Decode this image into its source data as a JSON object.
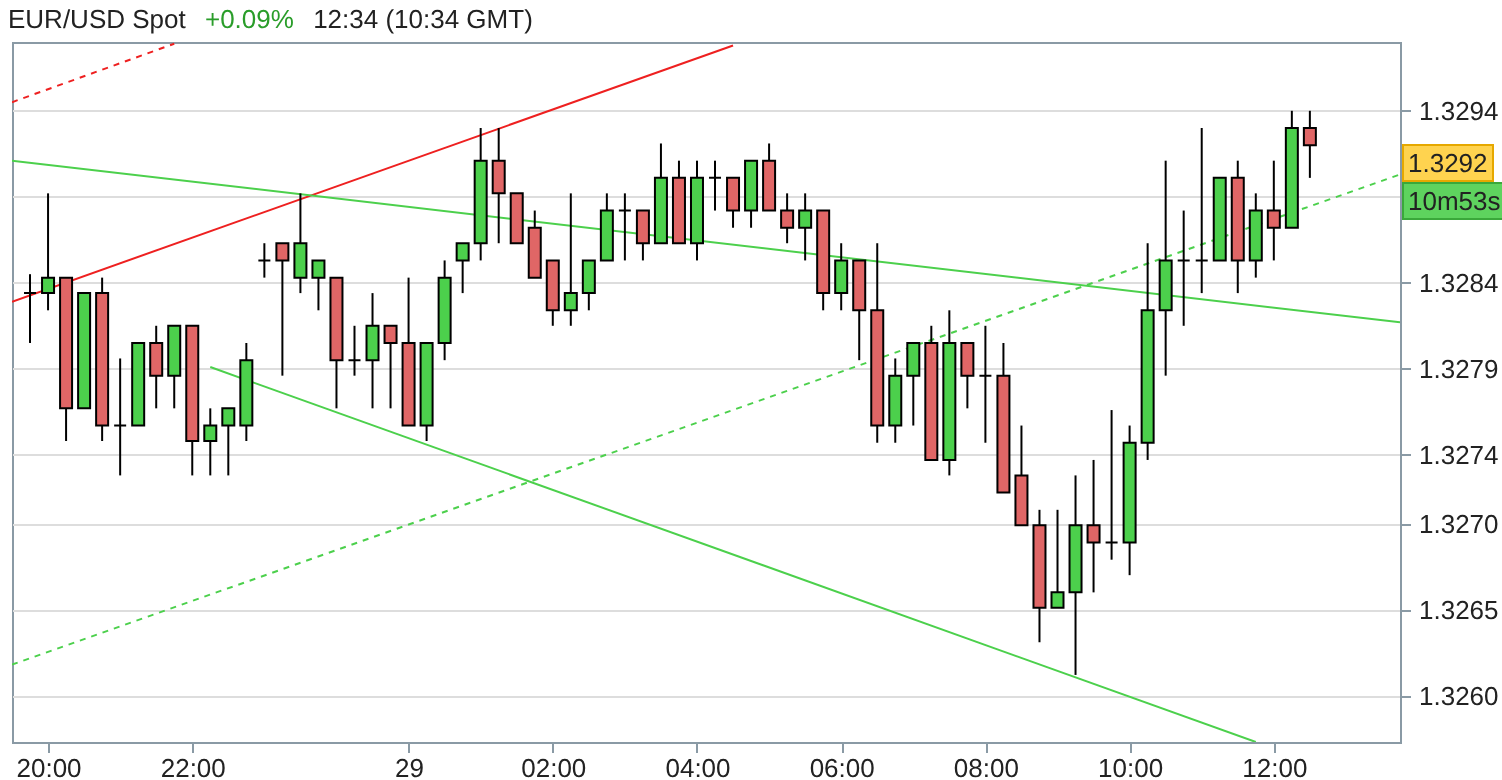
{
  "chart_data": {
    "type": "candlestick",
    "title": "EUR/USD Spot",
    "subtitle": "+0.09% 12:34 (10:34 GMT)",
    "categories": [
      null,
      null,
      "20:00",
      null,
      null,
      null,
      null,
      null,
      null,
      null,
      "22:00",
      null,
      null,
      null,
      null,
      null,
      null,
      null,
      null,
      null,
      null,
      null,
      "29",
      null,
      null,
      null,
      null,
      null,
      null,
      null,
      "02:00",
      null,
      null,
      null,
      null,
      null,
      null,
      null,
      "04:00",
      null,
      null,
      null,
      null,
      null,
      null,
      null,
      "06:00",
      null,
      null,
      null,
      null,
      null,
      null,
      null,
      "08:00",
      null,
      null,
      null,
      null,
      null,
      null,
      null,
      "10:00",
      null,
      null,
      null,
      null,
      null,
      null,
      null,
      "12:00",
      null,
      null,
      null,
      null,
      null,
      null,
      null
    ],
    "ohlc": [
      null,
      [
        1.32834,
        1.32845,
        1.32805,
        1.32834
      ],
      [
        1.32834,
        1.32892,
        1.32824,
        1.32843
      ],
      [
        1.32843,
        1.32843,
        1.32748,
        1.32767
      ],
      [
        1.32767,
        1.32834,
        1.32767,
        1.32834
      ],
      [
        1.32834,
        1.32843,
        1.32748,
        1.32757
      ],
      [
        1.32757,
        1.32796,
        1.32728,
        1.32757
      ],
      [
        1.32757,
        1.32805,
        1.32757,
        1.32805
      ],
      [
        1.32805,
        1.32815,
        1.32767,
        1.32786
      ],
      [
        1.32786,
        1.32815,
        1.32767,
        1.32815
      ],
      [
        1.32815,
        1.32815,
        1.32728,
        1.32748
      ],
      [
        1.32748,
        1.32767,
        1.32728,
        1.32757
      ],
      [
        1.32757,
        1.32767,
        1.32728,
        1.32767
      ],
      [
        1.32757,
        1.32805,
        1.32748,
        1.32795
      ],
      [
        1.32853,
        1.32863,
        1.32843,
        1.32853
      ],
      [
        1.32863,
        1.32863,
        1.32786,
        1.32853
      ],
      [
        1.32843,
        1.32892,
        1.32834,
        1.32863
      ],
      [
        1.32843,
        1.32853,
        1.32824,
        1.32853
      ],
      [
        1.32843,
        1.32843,
        1.32767,
        1.32795
      ],
      [
        1.32795,
        1.32815,
        1.32786,
        1.32795
      ],
      [
        1.32795,
        1.32834,
        1.32767,
        1.32815
      ],
      [
        1.32815,
        1.32815,
        1.32767,
        1.32805
      ],
      [
        1.32805,
        1.32843,
        1.32757,
        1.32757
      ],
      [
        1.32757,
        1.32805,
        1.32748,
        1.32805
      ],
      [
        1.32805,
        1.32853,
        1.32795,
        1.32843
      ],
      [
        1.32853,
        1.32863,
        1.32834,
        1.32863
      ],
      [
        1.32863,
        1.3293,
        1.32853,
        1.32911
      ],
      [
        1.32911,
        1.3293,
        1.32863,
        1.32892
      ],
      [
        1.32892,
        1.32892,
        1.32863,
        1.32863
      ],
      [
        1.32872,
        1.32882,
        1.32843,
        1.32843
      ],
      [
        1.32853,
        1.32853,
        1.32815,
        1.32824
      ],
      [
        1.32824,
        1.32892,
        1.32815,
        1.32834
      ],
      [
        1.32834,
        1.32853,
        1.32824,
        1.32853
      ],
      [
        1.32853,
        1.32892,
        1.32853,
        1.32882
      ],
      [
        1.32882,
        1.32892,
        1.32853,
        1.32882
      ],
      [
        1.32882,
        1.32882,
        1.32853,
        1.32863
      ],
      [
        1.32863,
        1.32921,
        1.32863,
        1.32901
      ],
      [
        1.32901,
        1.32911,
        1.32863,
        1.32863
      ],
      [
        1.32863,
        1.32911,
        1.32853,
        1.32901
      ],
      [
        1.32901,
        1.32911,
        1.32882,
        1.32901
      ],
      [
        1.32901,
        1.32901,
        1.32872,
        1.32882
      ],
      [
        1.32882,
        1.32911,
        1.32872,
        1.32911
      ],
      [
        1.32911,
        1.32921,
        1.32882,
        1.32882
      ],
      [
        1.32882,
        1.32892,
        1.32863,
        1.32872
      ],
      [
        1.32872,
        1.32892,
        1.32853,
        1.32882
      ],
      [
        1.32882,
        1.32882,
        1.32824,
        1.32834
      ],
      [
        1.32834,
        1.32863,
        1.32824,
        1.32853
      ],
      [
        1.32853,
        1.32853,
        1.32795,
        1.32824
      ],
      [
        1.32824,
        1.32863,
        1.32747,
        1.32757
      ],
      [
        1.32757,
        1.32796,
        1.32747,
        1.32786
      ],
      [
        1.32786,
        1.32805,
        1.32757,
        1.32805
      ],
      [
        1.32805,
        1.32815,
        1.32737,
        1.32737
      ],
      [
        1.32737,
        1.32824,
        1.32728,
        1.32805
      ],
      [
        1.32805,
        1.32805,
        1.32767,
        1.32786
      ],
      [
        1.32786,
        1.32815,
        1.32747,
        1.32786
      ],
      [
        1.32786,
        1.32805,
        1.32718,
        1.32718
      ],
      [
        1.32728,
        1.32757,
        1.32699,
        1.32699
      ],
      [
        1.32699,
        1.32708,
        1.32631,
        1.32651
      ],
      [
        1.32651,
        1.32708,
        1.32651,
        1.3266
      ],
      [
        1.3266,
        1.32728,
        1.32612,
        1.32699
      ],
      [
        1.32699,
        1.32737,
        1.3266,
        1.32689
      ],
      [
        1.32689,
        1.32766,
        1.32679,
        1.32689
      ],
      [
        1.32689,
        1.32757,
        1.3267,
        1.32747
      ],
      [
        1.32747,
        1.32863,
        1.32737,
        1.32824
      ],
      [
        1.32824,
        1.32911,
        1.32786,
        1.32853
      ],
      [
        1.32853,
        1.32882,
        1.32815,
        1.32853
      ],
      [
        1.32853,
        1.3293,
        1.32834,
        1.32853
      ],
      [
        1.32853,
        1.32901,
        1.32853,
        1.32901
      ],
      [
        1.32901,
        1.32911,
        1.32834,
        1.32853
      ],
      [
        1.32853,
        1.32892,
        1.32843,
        1.32882
      ],
      [
        1.32882,
        1.32911,
        1.32853,
        1.32872
      ],
      [
        1.32872,
        1.3294,
        1.32872,
        1.3293
      ],
      [
        1.3293,
        1.3294,
        1.32901,
        1.3292
      ],
      null,
      null,
      null,
      null,
      null
    ],
    "colors": [
      null,
      "#000000",
      "#4cd04c",
      "#e06666",
      "#4cd04c",
      "#e06666",
      "#000000",
      "#4cd04c",
      "#e06666",
      "#4cd04c",
      "#e06666",
      "#4cd04c",
      "#4cd04c",
      "#4cd04c",
      "#000000",
      "#e06666",
      "#4cd04c",
      "#4cd04c",
      "#e06666",
      "#000000",
      "#4cd04c",
      "#e06666",
      "#e06666",
      "#4cd04c",
      "#4cd04c",
      "#4cd04c",
      "#4cd04c",
      "#e06666",
      "#e06666",
      "#e06666",
      "#e06666",
      "#4cd04c",
      "#4cd04c",
      "#4cd04c",
      "#000000",
      "#e06666",
      "#4cd04c",
      "#e06666",
      "#4cd04c",
      "#000000",
      "#e06666",
      "#4cd04c",
      "#e06666",
      "#e06666",
      "#4cd04c",
      "#e06666",
      "#4cd04c",
      "#e06666",
      "#e06666",
      "#4cd04c",
      "#4cd04c",
      "#e06666",
      "#4cd04c",
      "#e06666",
      "#000000",
      "#e06666",
      "#e06666",
      "#e06666",
      "#4cd04c",
      "#4cd04c",
      "#e06666",
      "#000000",
      "#4cd04c",
      "#4cd04c",
      "#4cd04c",
      "#000000",
      "#000000",
      "#4cd04c",
      "#e06666",
      "#4cd04c",
      "#e06666",
      "#4cd04c",
      "#e06666",
      null,
      null,
      null,
      null,
      null
    ],
    "series": [
      {
        "type": "line",
        "color": "#ee2020",
        "line_style": "solid",
        "values": [
          1.32829,
          null,
          null,
          null,
          null,
          null,
          null,
          null,
          null,
          null,
          null,
          null,
          null,
          null,
          null,
          null,
          null,
          null,
          null,
          null,
          null,
          null,
          null,
          null,
          null,
          null,
          null,
          null,
          null,
          null,
          null,
          null,
          null,
          null,
          null,
          null,
          null,
          null,
          null,
          null,
          1.32978,
          null,
          null,
          null,
          null,
          null,
          null,
          null,
          null,
          null,
          null,
          null,
          null,
          null,
          null,
          null,
          null,
          null,
          null,
          null,
          null,
          null,
          null,
          null,
          null,
          null,
          null,
          null,
          null,
          null,
          null,
          null,
          null,
          null,
          null,
          null,
          null,
          null
        ]
      },
      {
        "type": "line",
        "color": "#ee2020",
        "line_style": "dashed",
        "values": [
          1.32945,
          null,
          null,
          null,
          null,
          null,
          null,
          null,
          null,
          1.32979,
          null,
          null,
          null,
          null,
          null,
          null,
          null,
          null,
          null,
          null,
          null,
          null,
          null,
          null,
          null,
          null,
          null,
          null,
          null,
          null,
          null,
          null,
          null,
          null,
          null,
          null,
          null,
          null,
          null,
          null,
          null,
          null,
          null,
          null,
          null,
          null,
          null,
          null,
          null,
          null,
          null,
          null,
          null,
          null,
          null,
          null,
          null,
          null,
          null,
          null,
          null,
          null,
          null,
          null,
          null,
          null,
          null,
          null,
          null,
          null,
          null,
          null,
          null,
          null,
          null,
          null,
          null,
          null
        ]
      },
      {
        "type": "line",
        "color": "#4cd04c",
        "line_style": "solid",
        "values": [
          1.32911,
          null,
          null,
          null,
          null,
          null,
          null,
          null,
          null,
          null,
          null,
          null,
          null,
          null,
          null,
          null,
          null,
          null,
          null,
          null,
          null,
          null,
          null,
          null,
          null,
          null,
          null,
          null,
          null,
          null,
          null,
          null,
          null,
          null,
          null,
          null,
          null,
          null,
          null,
          null,
          null,
          null,
          null,
          null,
          null,
          null,
          null,
          null,
          null,
          null,
          null,
          null,
          null,
          null,
          null,
          null,
          null,
          null,
          null,
          null,
          null,
          null,
          null,
          null,
          null,
          null,
          null,
          null,
          null,
          null,
          null,
          null,
          null,
          null,
          null,
          null,
          null,
          1.32817
        ]
      },
      {
        "type": "line",
        "color": "#4cd04c",
        "line_style": "solid",
        "values": [
          null,
          null,
          null,
          null,
          null,
          null,
          null,
          null,
          null,
          null,
          null,
          1.32791,
          null,
          null,
          null,
          null,
          null,
          null,
          null,
          null,
          null,
          null,
          null,
          null,
          null,
          null,
          null,
          null,
          null,
          null,
          null,
          null,
          null,
          null,
          null,
          null,
          null,
          null,
          null,
          null,
          null,
          null,
          null,
          null,
          null,
          null,
          null,
          null,
          null,
          null,
          null,
          null,
          null,
          null,
          null,
          null,
          null,
          null,
          null,
          null,
          null,
          null,
          null,
          null,
          null,
          null,
          null,
          null,
          null,
          1.32573,
          null,
          null,
          null,
          null,
          null,
          null,
          null,
          null
        ]
      },
      {
        "type": "line",
        "color": "#4cd04c",
        "line_style": "dashed",
        "values": [
          1.32618,
          null,
          null,
          null,
          null,
          null,
          null,
          null,
          null,
          null,
          null,
          null,
          null,
          null,
          null,
          null,
          null,
          null,
          null,
          null,
          null,
          null,
          null,
          null,
          null,
          null,
          null,
          null,
          null,
          null,
          null,
          null,
          null,
          null,
          null,
          null,
          null,
          null,
          null,
          null,
          null,
          null,
          null,
          null,
          null,
          null,
          null,
          null,
          null,
          null,
          null,
          null,
          null,
          null,
          null,
          null,
          null,
          null,
          null,
          null,
          null,
          null,
          null,
          null,
          null,
          null,
          null,
          null,
          null,
          null,
          null,
          null,
          null,
          null,
          null,
          null,
          null,
          1.32903
        ]
      }
    ],
    "ylim": [
      1.32573,
      1.3298
    ],
    "yticks": [
      1.3294,
      {
        "value": 1.3289,
        "label": null
      },
      1.3284,
      1.3279,
      1.3274,
      {
        "value": 1.327,
        "label": "1.3270"
      },
      1.3265,
      {
        "value": 1.326,
        "label": "1.3260"
      }
    ],
    "grid": "y",
    "annotations": [
      "1.3292",
      "10m53s"
    ]
  }
}
